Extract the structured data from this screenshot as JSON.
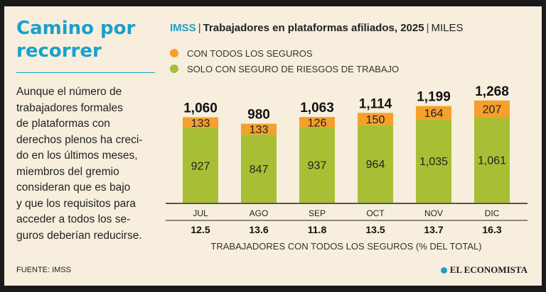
{
  "headline": "Camino por recorrer",
  "body_text": "Aunque el número de\ntrabajadores formales\nde plataformas con\nderechos plenos ha creci-\ndo en los últimos meses,\nmiembros del gremio\nconsideran que es bajo\ny que los requisitos para\nacceder a todos los se-\nguros deberían reducirse.",
  "source": "FUENTE: IMSS",
  "brand": "EL ECONOMISTA",
  "colors": {
    "accent": "#1aa0c8",
    "full": "#f5a02a",
    "partial": "#a8bf35",
    "background": "#f7eedd"
  },
  "chart_data": {
    "type": "bar",
    "agency": "IMSS",
    "title": "Trabajadores en plataformas afiliados, 2025",
    "unit": "MILES",
    "categories": [
      "JUL",
      "AGO",
      "SEP",
      "OCT",
      "NOV",
      "DIC"
    ],
    "totals": [
      "1,060",
      "980",
      "1,063",
      "1,114",
      "1,199",
      "1,268"
    ],
    "series": [
      {
        "name": "SOLO CON SEGURO DE RIESGOS DE TRABAJO",
        "values": [
          927,
          847,
          937,
          964,
          1035,
          1061
        ],
        "labels": [
          "927",
          "847",
          "937",
          "964",
          "1,035",
          "1,061"
        ]
      },
      {
        "name": "CON TODOS LOS SEGUROS",
        "values": [
          133,
          133,
          126,
          150,
          164,
          207
        ],
        "labels": [
          "133",
          "133",
          "126",
          "150",
          "164",
          "207"
        ]
      }
    ],
    "percent_full": [
      "12.5",
      "13.6",
      "11.8",
      "13.5",
      "13.7",
      "16.3"
    ],
    "percent_label": "TRABAJADORES CON TODOS LOS SEGUROS (% DEL TOTAL)",
    "ylim": [
      0,
      1300
    ]
  }
}
